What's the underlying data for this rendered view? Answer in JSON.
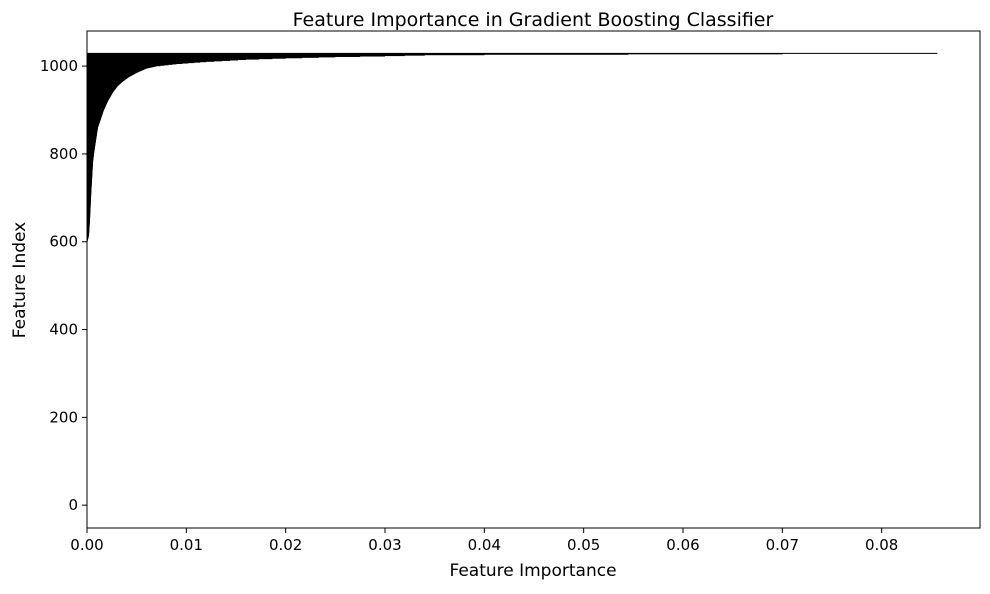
{
  "chart_data": {
    "type": "bar",
    "orientation": "horizontal",
    "title": "Feature Importance in Gradient Boosting Classifier",
    "xlabel": "Feature Importance",
    "ylabel": "Feature Index",
    "xlim": [
      0,
      0.0899
    ],
    "ylim": [
      -52,
      1080
    ],
    "xticks": [
      "0.00",
      "0.01",
      "0.02",
      "0.03",
      "0.04",
      "0.05",
      "0.06",
      "0.07",
      "0.08"
    ],
    "yticks": [
      "0",
      "200",
      "400",
      "600",
      "800",
      "1000"
    ],
    "grid": false,
    "legend": "none",
    "bar_color": "#000000",
    "n_features": 1030,
    "series": [
      {
        "profile": [
          {
            "index": 600,
            "importance": 0.0
          },
          {
            "index": 605,
            "importance": 0.0001
          },
          {
            "index": 615,
            "importance": 0.0002
          },
          {
            "index": 650,
            "importance": 0.0003
          },
          {
            "index": 700,
            "importance": 0.0004
          },
          {
            "index": 740,
            "importance": 0.0005
          },
          {
            "index": 780,
            "importance": 0.0006
          },
          {
            "index": 800,
            "importance": 0.0007
          },
          {
            "index": 830,
            "importance": 0.0009
          },
          {
            "index": 860,
            "importance": 0.0011
          },
          {
            "index": 880,
            "importance": 0.0014
          },
          {
            "index": 900,
            "importance": 0.0017
          },
          {
            "index": 920,
            "importance": 0.0021
          },
          {
            "index": 940,
            "importance": 0.0026
          },
          {
            "index": 955,
            "importance": 0.0031
          },
          {
            "index": 965,
            "importance": 0.0036
          },
          {
            "index": 975,
            "importance": 0.0042
          },
          {
            "index": 985,
            "importance": 0.005
          },
          {
            "index": 995,
            "importance": 0.006
          },
          {
            "index": 1000,
            "importance": 0.007
          },
          {
            "index": 1005,
            "importance": 0.009
          },
          {
            "index": 1010,
            "importance": 0.012
          },
          {
            "index": 1015,
            "importance": 0.016
          },
          {
            "index": 1018,
            "importance": 0.02
          },
          {
            "index": 1021,
            "importance": 0.025
          },
          {
            "index": 1023,
            "importance": 0.03
          },
          {
            "index": 1025,
            "importance": 0.034
          },
          {
            "index": 1026,
            "importance": 0.04
          },
          {
            "index": 1027,
            "importance": 0.0545
          },
          {
            "index": 1029,
            "importance": 0.0856
          }
        ]
      }
    ]
  }
}
